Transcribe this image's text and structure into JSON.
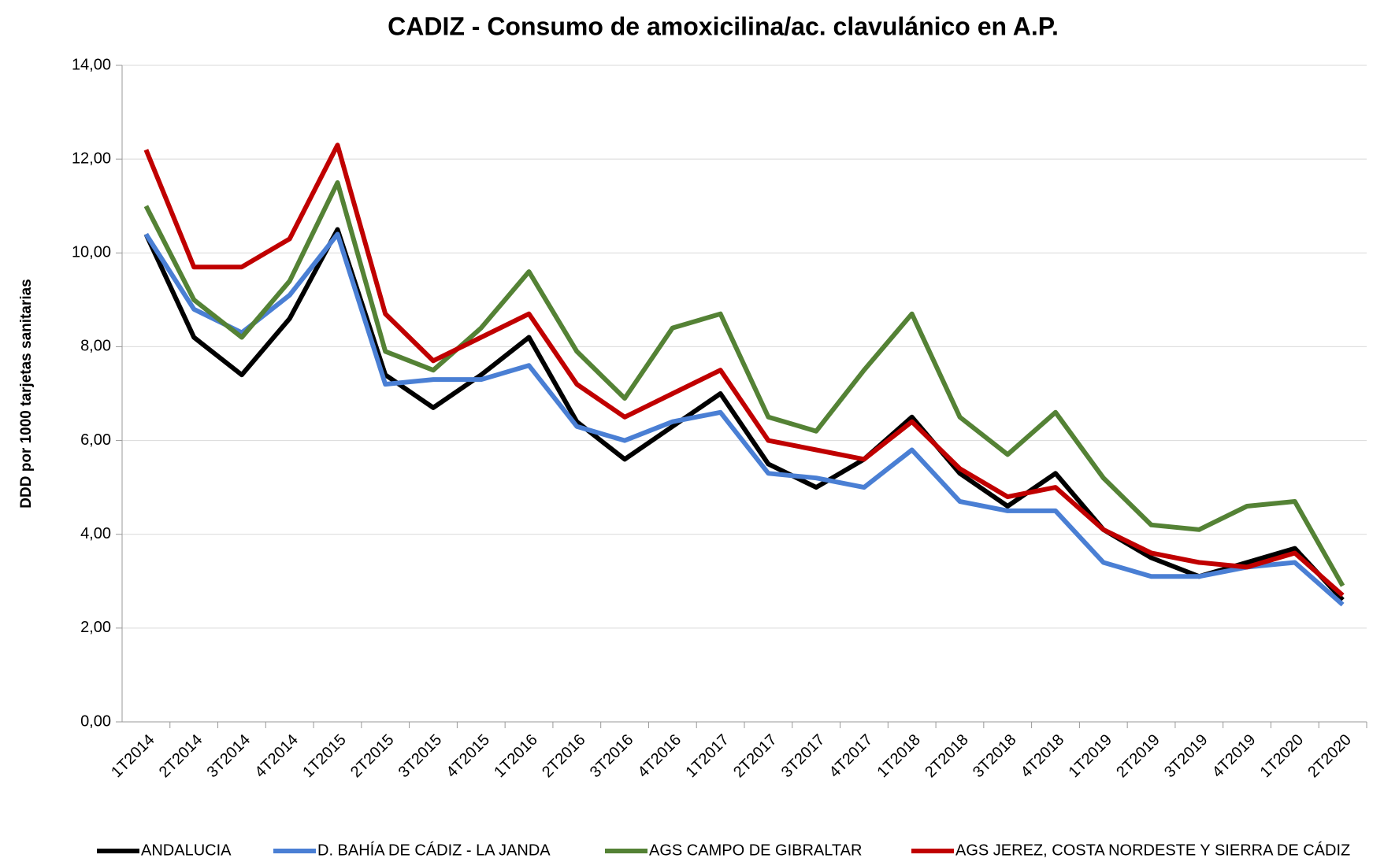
{
  "chart_data": {
    "type": "line",
    "title": "CADIZ - Consumo de amoxicilina/ac. clavulánico en A.P.",
    "y_label": "DDD por 1000 tarjetas sanitarias",
    "categories": [
      "1T2014",
      "2T2014",
      "3T2014",
      "4T2014",
      "1T2015",
      "2T2015",
      "3T2015",
      "4T2015",
      "1T2016",
      "2T2016",
      "3T2016",
      "4T2016",
      "1T2017",
      "2T2017",
      "3T2017",
      "4T2017",
      "1T2018",
      "2T2018",
      "3T2018",
      "4T2018",
      "1T2019",
      "2T2019",
      "3T2019",
      "4T2019",
      "1T2020",
      "2T2020"
    ],
    "series": [
      {
        "name": "ANDALUCIA",
        "color": "#000000",
        "values": [
          10.4,
          8.2,
          7.4,
          8.6,
          10.5,
          7.4,
          6.7,
          7.4,
          8.2,
          6.4,
          5.6,
          6.3,
          7.0,
          5.5,
          5.0,
          5.6,
          6.5,
          5.3,
          4.6,
          5.3,
          4.1,
          3.5,
          3.1,
          3.4,
          3.7,
          2.6
        ]
      },
      {
        "name": "D. BAHÍA DE CÁDIZ - LA JANDA",
        "color": "#4a7fd4",
        "values": [
          10.4,
          8.8,
          8.3,
          9.1,
          10.4,
          7.2,
          7.3,
          7.3,
          7.6,
          6.3,
          6.0,
          6.4,
          6.6,
          5.3,
          5.2,
          5.0,
          5.8,
          4.7,
          4.5,
          4.5,
          3.4,
          3.1,
          3.1,
          3.3,
          3.4,
          2.5
        ]
      },
      {
        "name": "AGS CAMPO DE GIBRALTAR",
        "color": "#548235",
        "values": [
          11.0,
          9.0,
          8.2,
          9.4,
          11.5,
          7.9,
          7.5,
          8.4,
          9.6,
          7.9,
          6.9,
          8.4,
          8.7,
          6.5,
          6.2,
          7.5,
          8.7,
          6.5,
          5.7,
          6.6,
          5.2,
          4.2,
          4.1,
          4.6,
          4.7,
          2.9
        ]
      },
      {
        "name": "AGS JEREZ, COSTA NORDESTE Y SIERRA DE CÁDIZ",
        "color": "#c00000",
        "values": [
          12.2,
          9.7,
          9.7,
          10.3,
          12.3,
          8.7,
          7.7,
          8.2,
          8.7,
          7.2,
          6.5,
          7.0,
          7.5,
          6.0,
          5.8,
          5.6,
          6.4,
          5.4,
          4.8,
          5.0,
          4.1,
          3.6,
          3.4,
          3.3,
          3.6,
          2.7
        ]
      }
    ],
    "ylim": [
      0,
      14
    ],
    "yticks": [
      {
        "value": 0,
        "label": "0,00"
      },
      {
        "value": 2,
        "label": "2,00"
      },
      {
        "value": 4,
        "label": "4,00"
      },
      {
        "value": 6,
        "label": "6,00"
      },
      {
        "value": 8,
        "label": "8,00"
      },
      {
        "value": 10,
        "label": "10,00"
      },
      {
        "value": 12,
        "label": "12,00"
      },
      {
        "value": 14,
        "label": "14,00"
      }
    ],
    "grid": true,
    "legend": "bottom"
  }
}
